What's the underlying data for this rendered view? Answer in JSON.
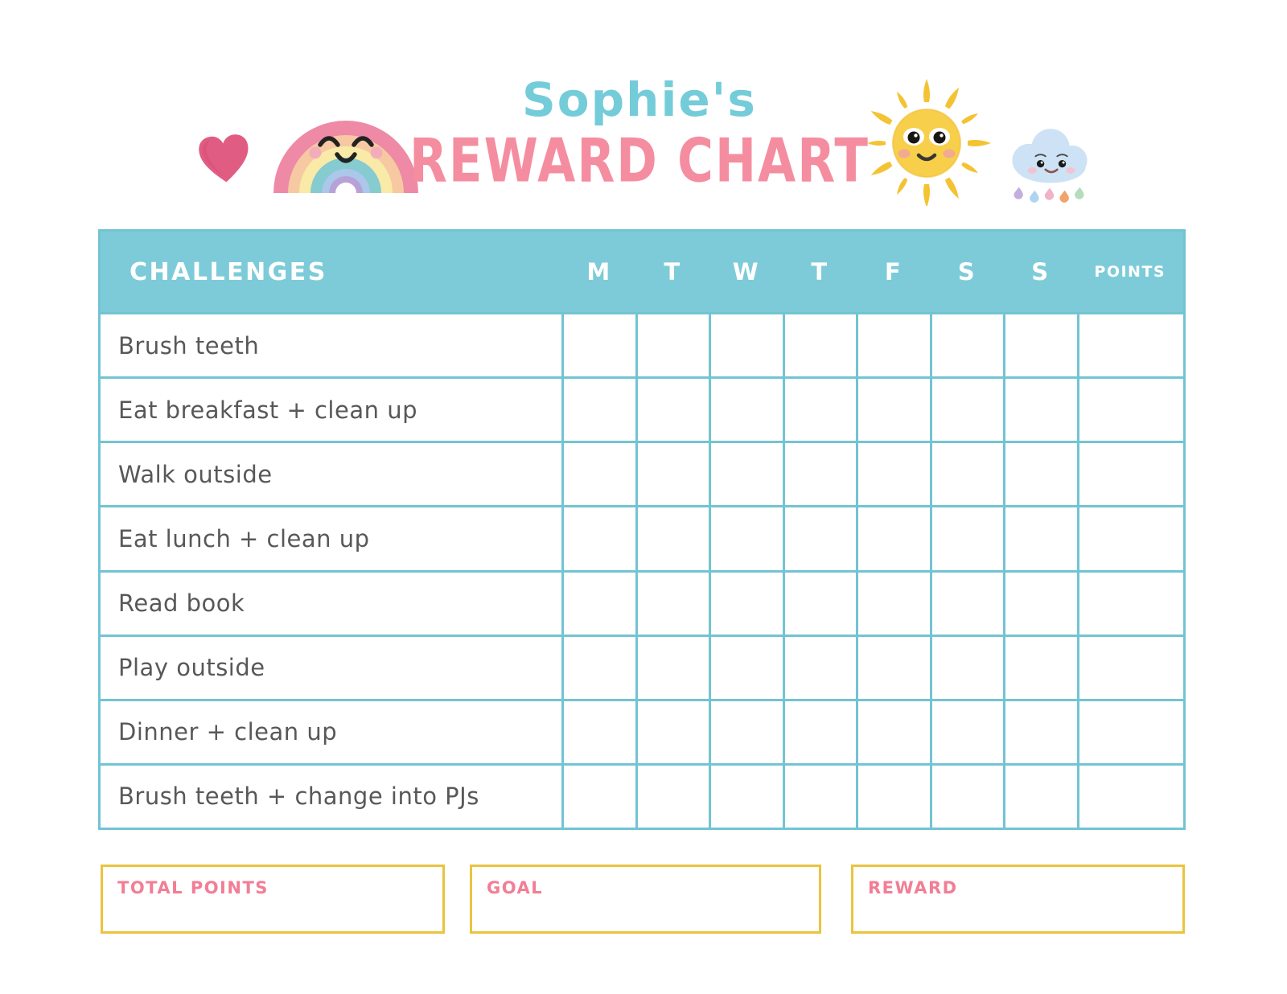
{
  "header": {
    "name_title": "Sophie's",
    "chart_title": "REWARD CHART",
    "icons": [
      "heart-icon",
      "rainbow-icon",
      "sun-icon",
      "rain-cloud-icon"
    ]
  },
  "colors": {
    "header_band_teal": "#7dcbd8",
    "grid_line_teal": "#72c4d2",
    "title_teal": "#74ccd9",
    "title_pink": "#f58da0",
    "footer_label_pink": "#f27e95",
    "footer_border_gold": "#eac43f",
    "row_text_gray": "#58585b"
  },
  "table": {
    "header": {
      "challenges": "CHALLENGES",
      "days": [
        "M",
        "T",
        "W",
        "T",
        "F",
        "S",
        "S"
      ],
      "points": "POINTS"
    },
    "rows": [
      {
        "challenge": "Brush teeth",
        "days": [
          "",
          "",
          "",
          "",
          "",
          "",
          ""
        ],
        "points": ""
      },
      {
        "challenge": "Eat breakfast + clean up",
        "days": [
          "",
          "",
          "",
          "",
          "",
          "",
          ""
        ],
        "points": ""
      },
      {
        "challenge": "Walk outside",
        "days": [
          "",
          "",
          "",
          "",
          "",
          "",
          ""
        ],
        "points": ""
      },
      {
        "challenge": "Eat lunch + clean up",
        "days": [
          "",
          "",
          "",
          "",
          "",
          "",
          ""
        ],
        "points": ""
      },
      {
        "challenge": "Read book",
        "days": [
          "",
          "",
          "",
          "",
          "",
          "",
          ""
        ],
        "points": ""
      },
      {
        "challenge": "Play outside",
        "days": [
          "",
          "",
          "",
          "",
          "",
          "",
          ""
        ],
        "points": ""
      },
      {
        "challenge": "Dinner + clean up",
        "days": [
          "",
          "",
          "",
          "",
          "",
          "",
          ""
        ],
        "points": ""
      },
      {
        "challenge": "Brush teeth + change into PJs",
        "days": [
          "",
          "",
          "",
          "",
          "",
          "",
          ""
        ],
        "points": ""
      }
    ]
  },
  "footer": {
    "boxes": [
      {
        "label": "TOTAL POINTS",
        "value": ""
      },
      {
        "label": "GOAL",
        "value": ""
      },
      {
        "label": "REWARD",
        "value": ""
      }
    ]
  }
}
